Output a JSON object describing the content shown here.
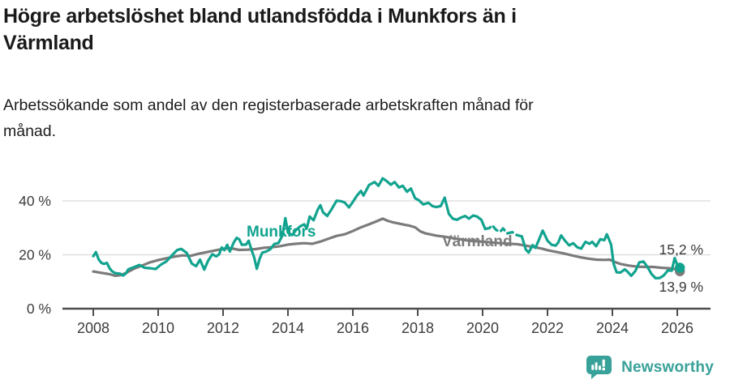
{
  "header": {
    "title_line1": "Högre arbetslöshet bland utlandsfödda i Munkfors än i",
    "title_line2": "Värmland",
    "subtitle_line1": "Arbetssökande som andel av den registerbaserade arbetskraften månad för",
    "subtitle_line2": "månad."
  },
  "footer": {
    "brand": "Newsworthy",
    "brand_color": "#38a199",
    "logo_icon": "speech-bubble-bar-chart-icon"
  },
  "chart_data": {
    "type": "line",
    "unit": "%",
    "title": "Högre arbetslöshet bland utlandsfödda i Munkfors än i Värmland",
    "subtitle": "Arbetssökande som andel av den registerbaserade arbetskraften månad för månad.",
    "grid": "horizontal-only",
    "x_axis": {
      "ticks": [
        2008,
        2010,
        2012,
        2014,
        2016,
        2018,
        2020,
        2022,
        2024,
        2026
      ]
    },
    "y_axis": {
      "ticks": [
        {
          "value": 0,
          "label": "0 %"
        },
        {
          "value": 20,
          "label": "20 %"
        },
        {
          "value": 40,
          "label": "40 %"
        }
      ],
      "min": 0,
      "max": 48.5
    },
    "colors": {
      "munkfors": "#12a38f",
      "varmland": "#7b7b7b",
      "gridline": "#dadada",
      "axis": "#4d4d4d",
      "tick_label": "#3c3c3c",
      "value_label": "#3a3a3a"
    },
    "series": [
      {
        "name": "Värmland",
        "color": "#7b7b7b",
        "end_label": "13,9 %",
        "end_value": 13.9,
        "end_dot": true,
        "points": [
          [
            2008.0,
            13.8
          ],
          [
            2008.25,
            13.3
          ],
          [
            2008.5,
            12.8
          ],
          [
            2008.67,
            12.2
          ],
          [
            2008.83,
            12.4
          ],
          [
            2009.0,
            13.2
          ],
          [
            2009.25,
            14.8
          ],
          [
            2009.5,
            16.0
          ],
          [
            2009.75,
            17.2
          ],
          [
            2010.0,
            18.0
          ],
          [
            2010.25,
            18.7
          ],
          [
            2010.5,
            19.3
          ],
          [
            2010.75,
            19.8
          ],
          [
            2011.0,
            19.6
          ],
          [
            2011.25,
            20.4
          ],
          [
            2011.5,
            21.0
          ],
          [
            2011.75,
            21.6
          ],
          [
            2012.0,
            22.2
          ],
          [
            2012.25,
            22.4
          ],
          [
            2012.5,
            21.8
          ],
          [
            2012.75,
            21.9
          ],
          [
            2013.0,
            22.1
          ],
          [
            2013.25,
            22.6
          ],
          [
            2013.5,
            22.8
          ],
          [
            2013.75,
            23.2
          ],
          [
            2014.0,
            23.8
          ],
          [
            2014.25,
            24.1
          ],
          [
            2014.5,
            24.3
          ],
          [
            2014.75,
            24.1
          ],
          [
            2015.0,
            24.9
          ],
          [
            2015.25,
            26.0
          ],
          [
            2015.5,
            27.0
          ],
          [
            2015.75,
            27.6
          ],
          [
            2016.0,
            28.8
          ],
          [
            2016.25,
            30.2
          ],
          [
            2016.5,
            31.3
          ],
          [
            2016.75,
            32.5
          ],
          [
            2016.92,
            33.4
          ],
          [
            2017.08,
            32.6
          ],
          [
            2017.25,
            32.0
          ],
          [
            2017.42,
            31.6
          ],
          [
            2017.58,
            31.2
          ],
          [
            2017.75,
            30.8
          ],
          [
            2017.92,
            30.2
          ],
          [
            2018.08,
            28.7
          ],
          [
            2018.25,
            27.9
          ],
          [
            2018.42,
            27.5
          ],
          [
            2018.58,
            27.1
          ],
          [
            2018.83,
            26.7
          ],
          [
            2019.08,
            26.2
          ],
          [
            2019.33,
            25.7
          ],
          [
            2019.58,
            25.2
          ],
          [
            2019.83,
            25.0
          ],
          [
            2020.08,
            24.8
          ],
          [
            2020.33,
            24.5
          ],
          [
            2020.58,
            24.3
          ],
          [
            2020.83,
            24.1
          ],
          [
            2021.08,
            23.9
          ],
          [
            2021.33,
            23.4
          ],
          [
            2021.58,
            22.9
          ],
          [
            2021.83,
            22.3
          ],
          [
            2022.0,
            21.7
          ],
          [
            2022.25,
            21.1
          ],
          [
            2022.5,
            20.5
          ],
          [
            2022.75,
            19.8
          ],
          [
            2023.0,
            19.1
          ],
          [
            2023.25,
            18.6
          ],
          [
            2023.5,
            18.2
          ],
          [
            2023.75,
            18.1
          ],
          [
            2023.92,
            18.2
          ],
          [
            2024.08,
            17.3
          ],
          [
            2024.25,
            16.6
          ],
          [
            2024.5,
            16.0
          ],
          [
            2024.75,
            15.6
          ],
          [
            2025.0,
            15.5
          ],
          [
            2025.25,
            15.5
          ],
          [
            2025.5,
            15.2
          ],
          [
            2025.75,
            15.0
          ],
          [
            2025.92,
            14.7
          ],
          [
            2026.08,
            13.9
          ]
        ]
      },
      {
        "name": "Munkfors",
        "color": "#12a38f",
        "end_label": "15,2 %",
        "end_value": 15.2,
        "end_dot": true,
        "dashed_range": [
          2020.06,
          2021.23
        ],
        "points": [
          [
            2008.0,
            19.5
          ],
          [
            2008.08,
            21.0
          ],
          [
            2008.17,
            18.2
          ],
          [
            2008.25,
            17.0
          ],
          [
            2008.33,
            16.6
          ],
          [
            2008.42,
            17.0
          ],
          [
            2008.5,
            15.0
          ],
          [
            2008.58,
            13.9
          ],
          [
            2008.67,
            13.2
          ],
          [
            2008.83,
            13.0
          ],
          [
            2008.92,
            12.3
          ],
          [
            2009.0,
            13.0
          ],
          [
            2009.08,
            14.6
          ],
          [
            2009.25,
            15.4
          ],
          [
            2009.42,
            16.2
          ],
          [
            2009.58,
            15.2
          ],
          [
            2009.75,
            15.0
          ],
          [
            2009.92,
            14.7
          ],
          [
            2010.08,
            16.3
          ],
          [
            2010.25,
            17.5
          ],
          [
            2010.42,
            19.7
          ],
          [
            2010.58,
            21.7
          ],
          [
            2010.71,
            22.2
          ],
          [
            2010.88,
            20.7
          ],
          [
            2011.04,
            16.7
          ],
          [
            2011.17,
            15.8
          ],
          [
            2011.29,
            18.2
          ],
          [
            2011.42,
            14.5
          ],
          [
            2011.54,
            17.8
          ],
          [
            2011.67,
            20.2
          ],
          [
            2011.79,
            19.4
          ],
          [
            2011.88,
            20.2
          ],
          [
            2011.96,
            22.7
          ],
          [
            2012.04,
            21.7
          ],
          [
            2012.13,
            23.7
          ],
          [
            2012.21,
            21.2
          ],
          [
            2012.33,
            24.6
          ],
          [
            2012.42,
            26.3
          ],
          [
            2012.5,
            25.7
          ],
          [
            2012.58,
            23.7
          ],
          [
            2012.71,
            23.8
          ],
          [
            2012.79,
            25.2
          ],
          [
            2012.88,
            21.7
          ],
          [
            2012.96,
            19.0
          ],
          [
            2013.04,
            14.8
          ],
          [
            2013.13,
            18.6
          ],
          [
            2013.21,
            20.8
          ],
          [
            2013.33,
            21.2
          ],
          [
            2013.46,
            22.1
          ],
          [
            2013.58,
            24.0
          ],
          [
            2013.71,
            24.4
          ],
          [
            2013.83,
            27.2
          ],
          [
            2013.92,
            33.6
          ],
          [
            2014.0,
            28.2
          ],
          [
            2014.13,
            27.3
          ],
          [
            2014.25,
            29.2
          ],
          [
            2014.38,
            30.6
          ],
          [
            2014.5,
            31.3
          ],
          [
            2014.58,
            29.8
          ],
          [
            2014.67,
            34.2
          ],
          [
            2014.79,
            32.8
          ],
          [
            2014.92,
            36.8
          ],
          [
            2015.0,
            38.4
          ],
          [
            2015.08,
            35.8
          ],
          [
            2015.21,
            34.4
          ],
          [
            2015.33,
            36.6
          ],
          [
            2015.5,
            40.1
          ],
          [
            2015.63,
            39.9
          ],
          [
            2015.75,
            39.4
          ],
          [
            2015.88,
            37.6
          ],
          [
            2016.0,
            39.6
          ],
          [
            2016.13,
            42.0
          ],
          [
            2016.25,
            43.7
          ],
          [
            2016.33,
            42.0
          ],
          [
            2016.5,
            45.9
          ],
          [
            2016.67,
            47.0
          ],
          [
            2016.79,
            45.6
          ],
          [
            2016.92,
            48.4
          ],
          [
            2017.04,
            47.4
          ],
          [
            2017.17,
            46.0
          ],
          [
            2017.29,
            47.0
          ],
          [
            2017.42,
            45.0
          ],
          [
            2017.54,
            45.6
          ],
          [
            2017.67,
            43.4
          ],
          [
            2017.79,
            44.6
          ],
          [
            2017.92,
            41.0
          ],
          [
            2018.04,
            40.2
          ],
          [
            2018.17,
            38.7
          ],
          [
            2018.33,
            39.3
          ],
          [
            2018.46,
            38.0
          ],
          [
            2018.58,
            37.7
          ],
          [
            2018.71,
            38.1
          ],
          [
            2018.83,
            41.2
          ],
          [
            2018.96,
            35.2
          ],
          [
            2019.08,
            33.4
          ],
          [
            2019.21,
            33.0
          ],
          [
            2019.33,
            33.8
          ],
          [
            2019.46,
            34.4
          ],
          [
            2019.58,
            33.4
          ],
          [
            2019.71,
            34.6
          ],
          [
            2019.83,
            34.2
          ],
          [
            2019.96,
            33.0
          ],
          [
            2020.08,
            29.6
          ],
          [
            2020.21,
            29.9
          ],
          [
            2020.29,
            31.0
          ],
          [
            2020.42,
            29.2
          ],
          [
            2020.54,
            28.5
          ],
          [
            2020.63,
            29.8
          ],
          [
            2020.75,
            27.9
          ],
          [
            2020.92,
            28.4
          ],
          [
            2021.04,
            27.4
          ],
          [
            2021.21,
            26.8
          ],
          [
            2021.33,
            22.0
          ],
          [
            2021.42,
            20.8
          ],
          [
            2021.54,
            23.6
          ],
          [
            2021.63,
            22.6
          ],
          [
            2021.75,
            26.0
          ],
          [
            2021.85,
            29.0
          ],
          [
            2021.92,
            27.3
          ],
          [
            2022.0,
            25.2
          ],
          [
            2022.13,
            23.7
          ],
          [
            2022.25,
            23.4
          ],
          [
            2022.33,
            24.5
          ],
          [
            2022.42,
            27.2
          ],
          [
            2022.54,
            25.2
          ],
          [
            2022.67,
            23.5
          ],
          [
            2022.79,
            24.3
          ],
          [
            2022.92,
            22.8
          ],
          [
            2023.04,
            22.3
          ],
          [
            2023.17,
            24.8
          ],
          [
            2023.29,
            24.1
          ],
          [
            2023.38,
            24.8
          ],
          [
            2023.5,
            23.2
          ],
          [
            2023.63,
            25.8
          ],
          [
            2023.75,
            25.4
          ],
          [
            2023.83,
            27.6
          ],
          [
            2023.96,
            23.8
          ],
          [
            2024.04,
            16.6
          ],
          [
            2024.13,
            13.5
          ],
          [
            2024.25,
            13.4
          ],
          [
            2024.38,
            14.6
          ],
          [
            2024.46,
            13.8
          ],
          [
            2024.58,
            12.2
          ],
          [
            2024.71,
            14.0
          ],
          [
            2024.83,
            17.2
          ],
          [
            2024.96,
            17.5
          ],
          [
            2025.08,
            15.5
          ],
          [
            2025.21,
            12.8
          ],
          [
            2025.33,
            11.3
          ],
          [
            2025.46,
            11.4
          ],
          [
            2025.58,
            12.3
          ],
          [
            2025.71,
            14.2
          ],
          [
            2025.83,
            14.1
          ],
          [
            2025.92,
            18.8
          ],
          [
            2026.0,
            16.2
          ],
          [
            2026.08,
            15.2
          ]
        ]
      }
    ]
  }
}
